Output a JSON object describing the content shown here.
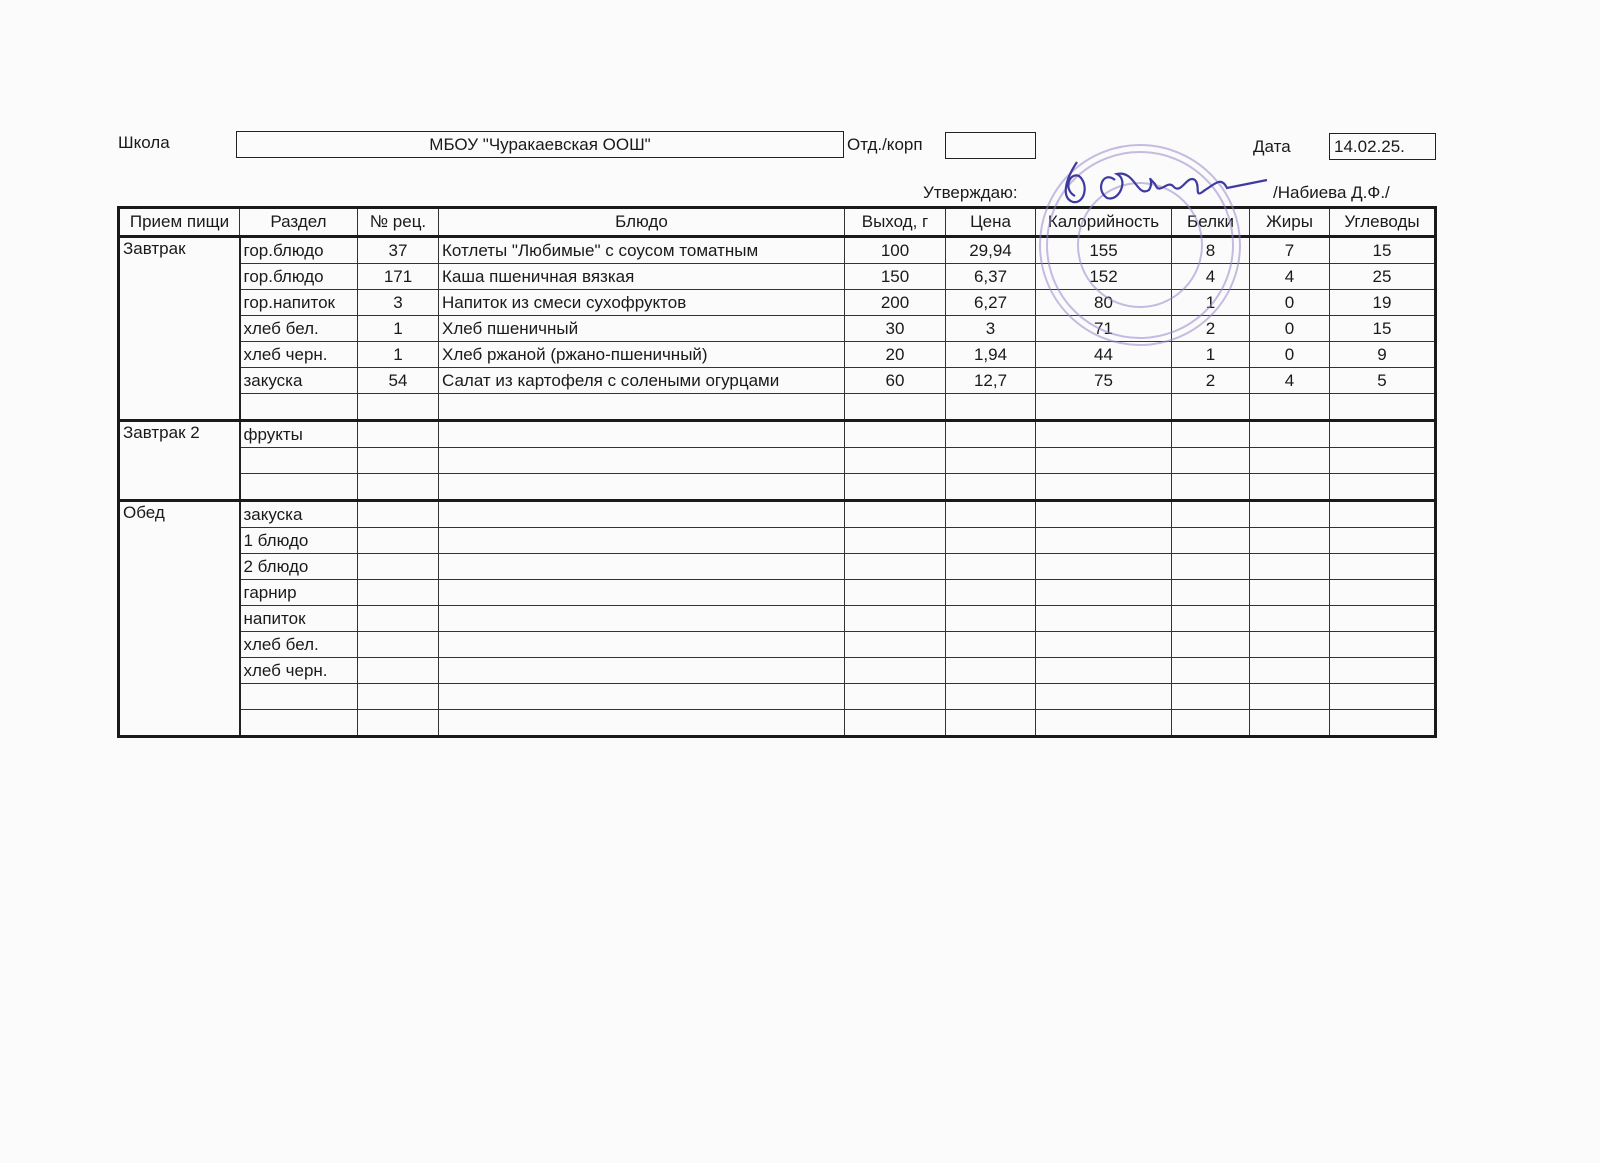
{
  "header": {
    "school_label": "Школа",
    "school_value": "МБОУ  \"Чуракаевская  ООШ\"",
    "dept_label": "Отд./корп",
    "dept_value": "",
    "date_label": "Дата",
    "date_value": "14.02.25.",
    "approve_label": "Утверждаю:",
    "approver": "/Набиева Д.Ф./"
  },
  "stamp_color": "#9a86c8",
  "signature_color": "#3d3aa0",
  "table": {
    "columns": [
      "Прием пищи",
      "Раздел",
      "№ рец.",
      "Блюдо",
      "Выход, г",
      "Цена",
      "Калорийность",
      "Белки",
      "Жиры",
      "Углеводы"
    ],
    "groups": [
      {
        "meal": "Завтрак",
        "rows": [
          [
            "гор.блюдо",
            "37",
            "Котлеты \"Любимые\" с соусом томатным",
            "100",
            "29,94",
            "155",
            "8",
            "7",
            "15"
          ],
          [
            "гор.блюдо",
            "171",
            "Каша пшеничная вязкая",
            "150",
            "6,37",
            "152",
            "4",
            "4",
            "25"
          ],
          [
            "гор.напиток",
            "3",
            "Напиток из смеси сухофруктов",
            "200",
            "6,27",
            "80",
            "1",
            "0",
            "19"
          ],
          [
            "хлеб бел.",
            "1",
            "Хлеб пшеничный",
            "30",
            "3",
            "71",
            "2",
            "0",
            "15"
          ],
          [
            "хлеб черн.",
            "1",
            "Хлеб ржаной (ржано-пшеничный)",
            "20",
            "1,94",
            "44",
            "1",
            "0",
            "9"
          ],
          [
            "закуска",
            "54",
            "Салат из картофеля с солеными огурцами",
            "60",
            "12,7",
            "75",
            "2",
            "4",
            "5"
          ],
          [
            "",
            "",
            "",
            "",
            "",
            "",
            "",
            "",
            ""
          ]
        ]
      },
      {
        "meal": "Завтрак 2",
        "rows": [
          [
            "фрукты",
            "",
            "",
            "",
            "",
            "",
            "",
            "",
            ""
          ],
          [
            "",
            "",
            "",
            "",
            "",
            "",
            "",
            "",
            ""
          ],
          [
            "",
            "",
            "",
            "",
            "",
            "",
            "",
            "",
            ""
          ]
        ]
      },
      {
        "meal": "Обед",
        "rows": [
          [
            "закуска",
            "",
            "",
            "",
            "",
            "",
            "",
            "",
            ""
          ],
          [
            "1 блюдо",
            "",
            "",
            "",
            "",
            "",
            "",
            "",
            ""
          ],
          [
            "2 блюдо",
            "",
            "",
            "",
            "",
            "",
            "",
            "",
            ""
          ],
          [
            "гарнир",
            "",
            "",
            "",
            "",
            "",
            "",
            "",
            ""
          ],
          [
            "напиток",
            "",
            "",
            "",
            "",
            "",
            "",
            "",
            ""
          ],
          [
            "хлеб бел.",
            "",
            "",
            "",
            "",
            "",
            "",
            "",
            ""
          ],
          [
            "хлеб черн.",
            "",
            "",
            "",
            "",
            "",
            "",
            "",
            ""
          ],
          [
            "",
            "",
            "",
            "",
            "",
            "",
            "",
            "",
            ""
          ],
          [
            "",
            "",
            "",
            "",
            "",
            "",
            "",
            "",
            ""
          ]
        ]
      }
    ]
  }
}
